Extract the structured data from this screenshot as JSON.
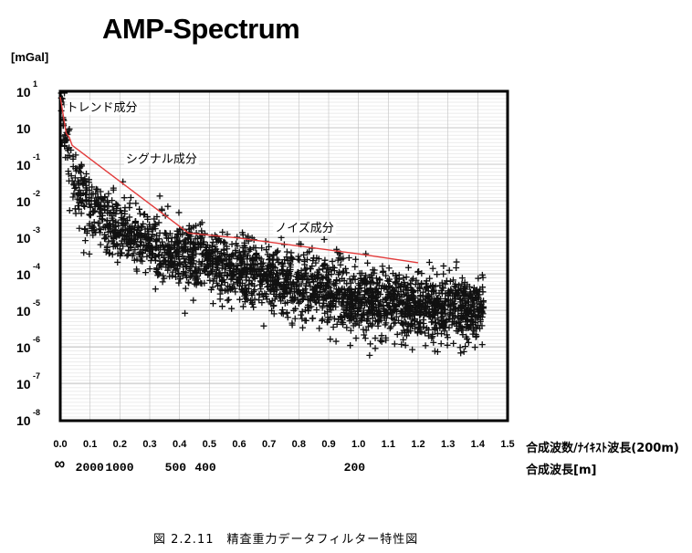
{
  "chart_data": {
    "type": "scatter",
    "title": "AMP-Spectrum",
    "ylabel_unit": "[mGal]",
    "xlabel": "合成波数/ﾅｲｷｽﾄ波長(200m)",
    "xlabel2": "合成波長[m]",
    "xlim": [
      0.0,
      1.5
    ],
    "x_ticks": [
      "0.0",
      "0.1",
      "0.2",
      "0.3",
      "0.4",
      "0.5",
      "0.6",
      "0.7",
      "0.8",
      "0.9",
      "1.0",
      "1.1",
      "1.2",
      "1.3",
      "1.4",
      "1.5"
    ],
    "y_scale": "log",
    "y_ticks": [
      {
        "base": "10",
        "exp": "1",
        "value": 10
      },
      {
        "base": "10",
        "exp": "",
        "value": 1
      },
      {
        "base": "10",
        "exp": "-1",
        "value": 0.1
      },
      {
        "base": "10",
        "exp": "-2",
        "value": 0.01
      },
      {
        "base": "10",
        "exp": "-3",
        "value": 0.001
      },
      {
        "base": "10",
        "exp": "-4",
        "value": 0.0001
      },
      {
        "base": "10",
        "exp": "-5",
        "value": 1e-05
      },
      {
        "base": "10",
        "exp": "-6",
        "value": 1e-06
      },
      {
        "base": "10",
        "exp": "-7",
        "value": 1e-07
      },
      {
        "base": "10",
        "exp": "-8",
        "value": 1e-08
      }
    ],
    "wavelength_labels": [
      {
        "label": "∞",
        "x": 0.0
      },
      {
        "label": "2000",
        "x": 0.1
      },
      {
        "label": "1000",
        "x": 0.2
      },
      {
        "label": "500",
        "x": 0.4
      },
      {
        "label": "400",
        "x": 0.5
      },
      {
        "label": "200",
        "x": 1.0
      }
    ],
    "filter_line": {
      "color": "#e23b3b",
      "points": [
        [
          0.0,
          7.0
        ],
        [
          0.02,
          0.7
        ],
        [
          0.03,
          0.55
        ],
        [
          0.04,
          0.33
        ],
        [
          0.43,
          0.0013
        ],
        [
          0.6,
          0.00095
        ],
        [
          1.0,
          0.00035
        ],
        [
          1.2,
          0.0002
        ]
      ]
    },
    "annotations": [
      {
        "text": "トレンド成分",
        "x": 0.02,
        "y": 2.8
      },
      {
        "text": "シグナル成分",
        "x": 0.22,
        "y": 0.11
      },
      {
        "text": "ノイズ成分",
        "x": 0.72,
        "y": 0.0014
      }
    ],
    "scatter_trend": {
      "description_points": [
        [
          0.0,
          5.0
        ],
        [
          0.05,
          0.03
        ],
        [
          0.1,
          0.006
        ],
        [
          0.2,
          0.0015
        ],
        [
          0.4,
          0.0003
        ],
        [
          0.6,
          0.00012
        ],
        [
          0.8,
          5e-05
        ],
        [
          1.0,
          2e-05
        ],
        [
          1.2,
          1.2e-05
        ],
        [
          1.4,
          1e-05
        ]
      ],
      "spread_decades": 1.0,
      "count": 2600,
      "marker": "+"
    }
  },
  "caption": "図 2.2.11　精査重力データフィルター特性図"
}
